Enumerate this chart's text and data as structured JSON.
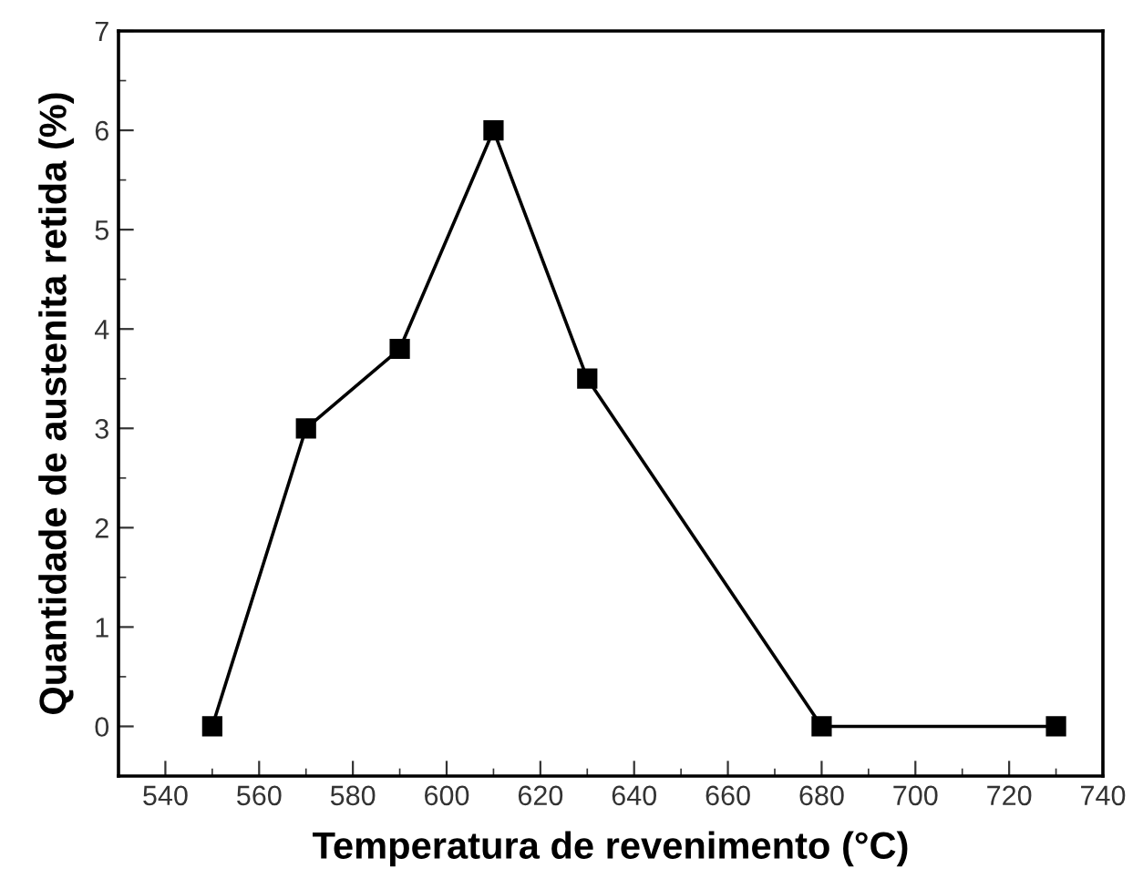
{
  "chart_data": {
    "type": "line",
    "xlabel": "Temperatura de revenimento (°C)",
    "ylabel": "Quantidade de austenita retida (%)",
    "x": [
      550,
      570,
      590,
      610,
      630,
      680,
      730
    ],
    "series": [
      {
        "color": "#000000",
        "values": [
          0,
          3,
          3.8,
          6,
          3.5,
          0,
          0
        ]
      }
    ],
    "xlim": [
      530,
      740
    ],
    "xticks": [
      540,
      560,
      580,
      600,
      620,
      640,
      660,
      680,
      700,
      720,
      740
    ],
    "ylim": [
      -0.5,
      7
    ],
    "yticks": [
      0,
      1,
      2,
      3,
      4,
      5,
      6,
      7
    ],
    "marker": "square",
    "line_style": "solid",
    "grid": false,
    "legend": false
  }
}
